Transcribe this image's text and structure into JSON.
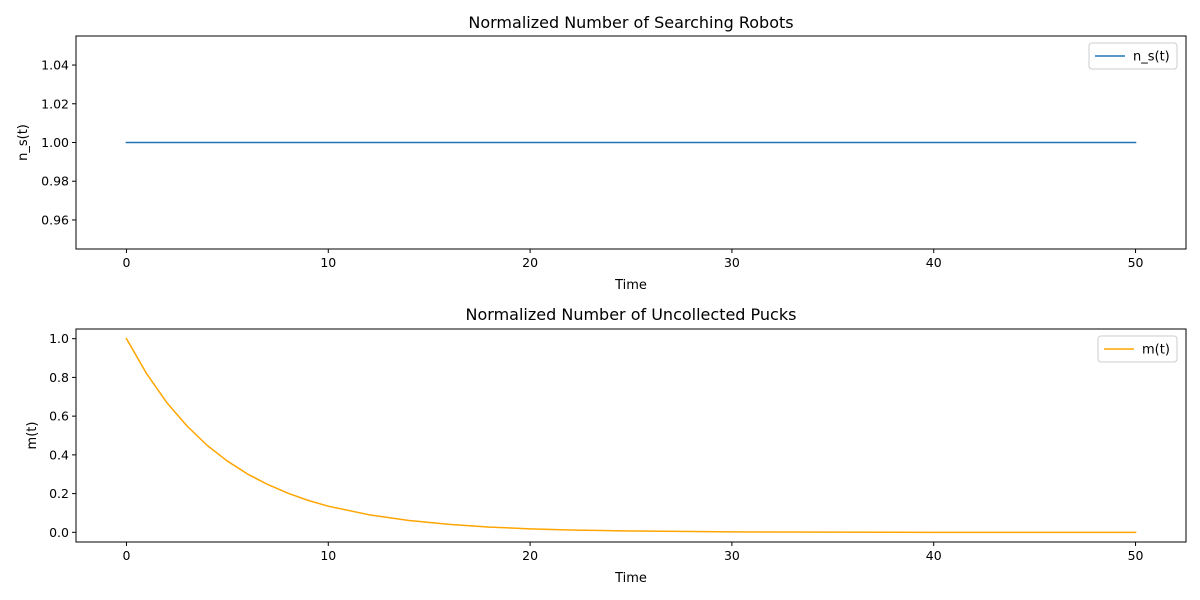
{
  "chart_data": [
    {
      "type": "line",
      "title": "Normalized Number of Searching Robots",
      "xlabel": "Time",
      "ylabel": "n_s(t)",
      "xlim": [
        -2.5,
        52.5
      ],
      "ylim": [
        0.945,
        1.055
      ],
      "x_ticks": [
        0,
        10,
        20,
        30,
        40,
        50
      ],
      "x_tick_labels": [
        "0",
        "10",
        "20",
        "30",
        "40",
        "50"
      ],
      "y_ticks": [
        0.96,
        0.98,
        1.0,
        1.02,
        1.04
      ],
      "y_tick_labels": [
        "0.96",
        "0.98",
        "1.00",
        "1.02",
        "1.04"
      ],
      "grid": false,
      "legend": "top-right",
      "series": [
        {
          "name": "n_s(t)",
          "color": "#1f77b4",
          "x": [
            0,
            5,
            10,
            15,
            20,
            25,
            30,
            35,
            40,
            45,
            50
          ],
          "y": [
            1,
            1,
            1,
            1,
            1,
            1,
            1,
            1,
            1,
            1,
            1
          ]
        }
      ]
    },
    {
      "type": "line",
      "title": "Normalized Number of Uncollected Pucks",
      "xlabel": "Time",
      "ylabel": "m(t)",
      "xlim": [
        -2.5,
        52.5
      ],
      "ylim": [
        -0.05,
        1.05
      ],
      "x_ticks": [
        0,
        10,
        20,
        30,
        40,
        50
      ],
      "x_tick_labels": [
        "0",
        "10",
        "20",
        "30",
        "40",
        "50"
      ],
      "y_ticks": [
        0.0,
        0.2,
        0.4,
        0.6,
        0.8,
        1.0
      ],
      "y_tick_labels": [
        "0.0",
        "0.2",
        "0.4",
        "0.6",
        "0.8",
        "1.0"
      ],
      "grid": false,
      "legend": "top-right",
      "series": [
        {
          "name": "m(t)",
          "color": "#ffa500",
          "x": [
            0,
            1,
            2,
            3,
            4,
            5,
            6,
            7,
            8,
            9,
            10,
            12,
            14,
            16,
            18,
            20,
            22,
            25,
            28,
            30,
            35,
            40,
            45,
            50
          ],
          "y": [
            1.0,
            0.819,
            0.67,
            0.549,
            0.449,
            0.368,
            0.301,
            0.247,
            0.202,
            0.165,
            0.135,
            0.091,
            0.061,
            0.041,
            0.027,
            0.018,
            0.012,
            0.007,
            0.004,
            0.002,
            0.001,
            0.0,
            0.0,
            0.0
          ]
        }
      ]
    }
  ]
}
